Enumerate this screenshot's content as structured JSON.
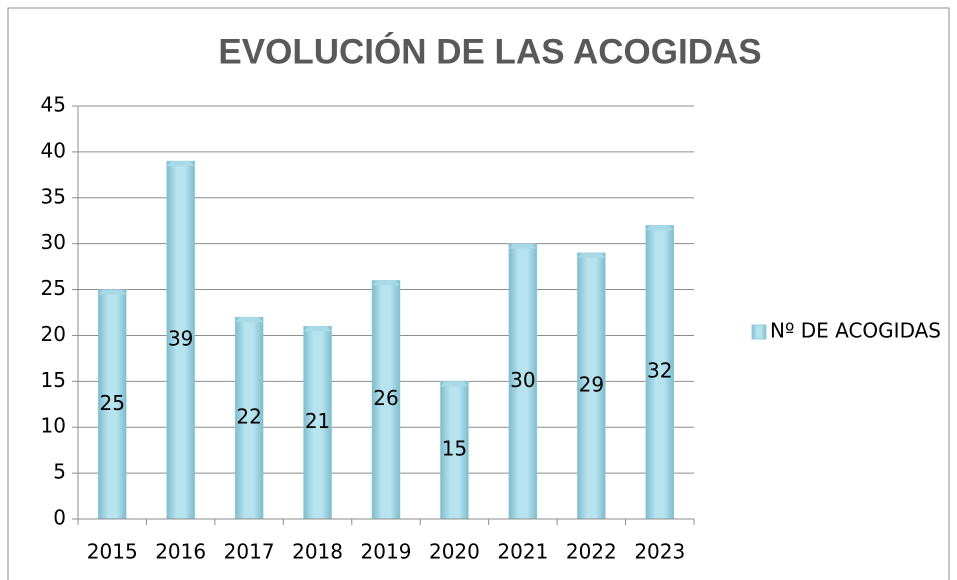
{
  "chart_data": {
    "type": "bar",
    "title": "EVOLUCIÓN DE LAS ACOGIDAS",
    "categories": [
      "2015",
      "2016",
      "2017",
      "2018",
      "2019",
      "2020",
      "2021",
      "2022",
      "2023"
    ],
    "series": [
      {
        "name": "Nº DE ACOGIDAS",
        "color": "#92cddc",
        "values": [
          25,
          39,
          22,
          21,
          26,
          15,
          30,
          29,
          32
        ]
      }
    ],
    "ylim": [
      0,
      45
    ],
    "yticks": [
      0,
      5,
      10,
      15,
      20,
      25,
      30,
      35,
      40,
      45
    ],
    "grid": true,
    "legend": "right"
  }
}
